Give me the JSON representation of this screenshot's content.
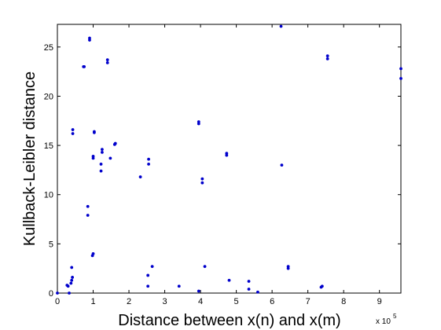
{
  "chart_data": {
    "type": "scatter",
    "title": "",
    "xlabel": "Distance between x(n) and x(m)",
    "ylabel": "Kullback-Leibler distance",
    "x_exponent_label": "x 10",
    "x_exponent_power": "5",
    "xlim": [
      0,
      960000
    ],
    "ylim": [
      0,
      27.3
    ],
    "x_ticks": [
      0,
      100000,
      200000,
      300000,
      400000,
      500000,
      600000,
      700000,
      800000,
      900000
    ],
    "x_tick_labels": [
      "0",
      "1",
      "2",
      "3",
      "4",
      "5",
      "6",
      "7",
      "8",
      "9"
    ],
    "y_ticks": [
      0,
      5,
      10,
      15,
      20,
      25
    ],
    "y_tick_labels": [
      "0",
      "5",
      "10",
      "15",
      "20",
      "25"
    ],
    "grid": false,
    "marker_color": "#0000cc",
    "points": [
      [
        0,
        0.0
      ],
      [
        27000,
        0.8
      ],
      [
        30000,
        0.7
      ],
      [
        33000,
        0.0
      ],
      [
        38000,
        1.0
      ],
      [
        40000,
        1.3
      ],
      [
        42000,
        1.6
      ],
      [
        40000,
        2.6
      ],
      [
        43000,
        16.2
      ],
      [
        43000,
        16.6
      ],
      [
        73000,
        23.0
      ],
      [
        75000,
        23.0
      ],
      [
        85000,
        8.8
      ],
      [
        85000,
        7.9
      ],
      [
        90000,
        25.7
      ],
      [
        90000,
        25.9
      ],
      [
        98000,
        3.8
      ],
      [
        100000,
        4.0
      ],
      [
        100000,
        13.7
      ],
      [
        100000,
        13.9
      ],
      [
        103000,
        16.3
      ],
      [
        103000,
        16.4
      ],
      [
        122000,
        12.4
      ],
      [
        122000,
        13.1
      ],
      [
        125000,
        14.3
      ],
      [
        125000,
        14.6
      ],
      [
        140000,
        23.4
      ],
      [
        140000,
        23.7
      ],
      [
        148000,
        13.7
      ],
      [
        160000,
        15.1
      ],
      [
        162000,
        15.2
      ],
      [
        232000,
        11.8
      ],
      [
        253000,
        0.7
      ],
      [
        253000,
        1.8
      ],
      [
        255000,
        13.1
      ],
      [
        255000,
        13.6
      ],
      [
        265000,
        2.7
      ],
      [
        340000,
        0.7
      ],
      [
        395000,
        17.2
      ],
      [
        395000,
        17.4
      ],
      [
        395000,
        0.2
      ],
      [
        405000,
        11.2
      ],
      [
        405000,
        11.6
      ],
      [
        412000,
        2.7
      ],
      [
        473000,
        14.0
      ],
      [
        473000,
        14.2
      ],
      [
        480000,
        1.3
      ],
      [
        535000,
        0.4
      ],
      [
        535000,
        1.2
      ],
      [
        560000,
        0.1
      ],
      [
        625000,
        27.1
      ],
      [
        627000,
        13.0
      ],
      [
        645000,
        2.5
      ],
      [
        645000,
        2.7
      ],
      [
        737000,
        0.6
      ],
      [
        740000,
        0.7
      ],
      [
        755000,
        23.8
      ],
      [
        755000,
        24.1
      ],
      [
        960000,
        21.8
      ],
      [
        960000,
        22.8
      ]
    ]
  }
}
